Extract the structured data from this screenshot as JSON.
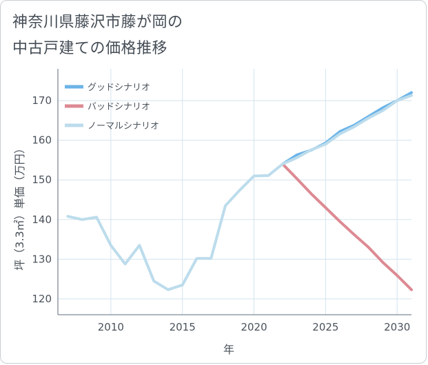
{
  "title_lines": [
    "神奈川県藤沢市藤が岡の",
    "中古戸建ての価格推移"
  ],
  "chart_data": {
    "type": "line",
    "title": "神奈川県藤沢市藤が岡の中古戸建ての価格推移",
    "xlabel": "年",
    "ylabel": "坪（3.3㎡）単価（万円）",
    "xlim": [
      2006.3,
      2031
    ],
    "ylim": [
      116,
      178
    ],
    "xticks": [
      2010,
      2015,
      2020,
      2025,
      2030
    ],
    "yticks": [
      120,
      130,
      140,
      150,
      160,
      170
    ],
    "grid": true,
    "legend_position": "top-left",
    "series": [
      {
        "name": "グッドシナリオ",
        "color": "#6cb4e8",
        "x": [
          2022,
          2023,
          2024,
          2025,
          2026,
          2027,
          2028,
          2029,
          2030,
          2031
        ],
        "y": [
          154,
          156.3,
          157.5,
          159.3,
          162.2,
          163.8,
          166,
          168.2,
          170,
          172
        ]
      },
      {
        "name": "バッドシナリオ",
        "color": "#dd8a93",
        "x": [
          2022,
          2023,
          2024,
          2025,
          2026,
          2027,
          2028,
          2029,
          2030,
          2031
        ],
        "y": [
          154,
          150.3,
          146.5,
          143,
          139.5,
          136.2,
          133,
          129.2,
          125.9,
          122.3
        ]
      },
      {
        "name": "ノーマルシナリオ",
        "color": "#bcdcec",
        "x": [
          2007,
          2008,
          2009,
          2010,
          2011,
          2012,
          2013,
          2014,
          2015,
          2016,
          2017,
          2018,
          2019,
          2020,
          2021,
          2022,
          2023,
          2024,
          2025,
          2026,
          2027,
          2028,
          2029,
          2030,
          2031
        ],
        "y": [
          140.8,
          140,
          140.6,
          133.5,
          128.8,
          133.5,
          124.5,
          122.3,
          123.5,
          130.2,
          130.2,
          143.5,
          147.4,
          151,
          151.1,
          154,
          155.6,
          157.6,
          159,
          161.6,
          163.4,
          165.6,
          167.5,
          170,
          171.3
        ]
      }
    ]
  }
}
